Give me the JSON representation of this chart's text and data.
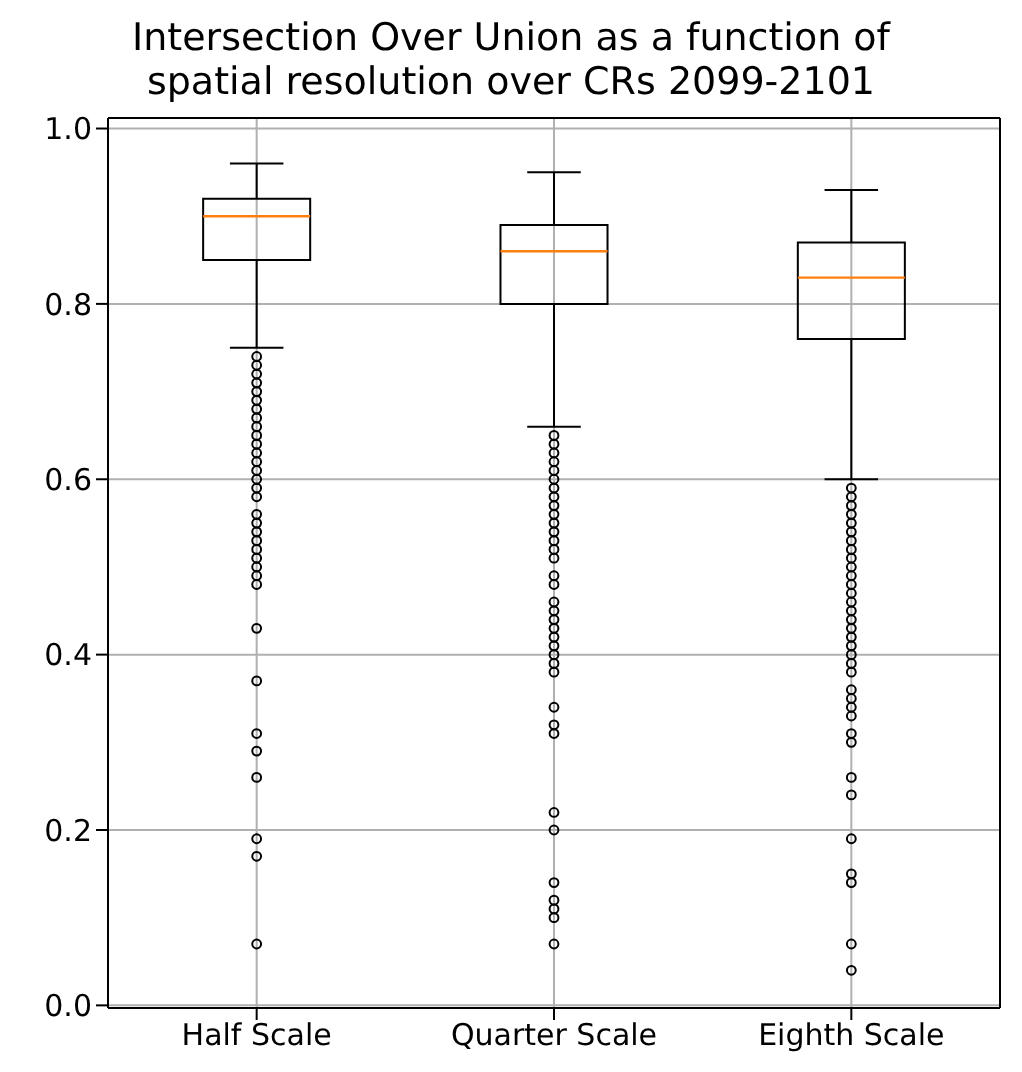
{
  "chart_data": {
    "type": "box",
    "title": "Intersection Over Union as a function of\nspatial resolution over CRs 2099-2101",
    "categories": [
      "Half Scale",
      "Quarter Scale",
      "Eighth Scale"
    ],
    "boxes": [
      {
        "low": 0.75,
        "q1": 0.85,
        "median": 0.9,
        "q3": 0.92,
        "high": 0.96,
        "outliers": [
          0.74,
          0.73,
          0.72,
          0.71,
          0.7,
          0.69,
          0.68,
          0.67,
          0.66,
          0.65,
          0.64,
          0.63,
          0.62,
          0.61,
          0.6,
          0.59,
          0.58,
          0.56,
          0.55,
          0.54,
          0.53,
          0.52,
          0.51,
          0.5,
          0.49,
          0.48,
          0.43,
          0.37,
          0.31,
          0.29,
          0.26,
          0.19,
          0.17,
          0.07
        ]
      },
      {
        "low": 0.66,
        "q1": 0.8,
        "median": 0.86,
        "q3": 0.89,
        "high": 0.95,
        "outliers": [
          0.65,
          0.64,
          0.63,
          0.62,
          0.61,
          0.6,
          0.59,
          0.58,
          0.57,
          0.56,
          0.55,
          0.54,
          0.53,
          0.52,
          0.51,
          0.49,
          0.48,
          0.46,
          0.45,
          0.44,
          0.43,
          0.42,
          0.41,
          0.4,
          0.39,
          0.38,
          0.34,
          0.32,
          0.31,
          0.22,
          0.2,
          0.14,
          0.12,
          0.11,
          0.1,
          0.07
        ]
      },
      {
        "low": 0.6,
        "q1": 0.76,
        "median": 0.83,
        "q3": 0.87,
        "high": 0.93,
        "outliers": [
          0.59,
          0.58,
          0.57,
          0.56,
          0.55,
          0.54,
          0.53,
          0.52,
          0.51,
          0.5,
          0.49,
          0.48,
          0.47,
          0.46,
          0.45,
          0.44,
          0.43,
          0.42,
          0.41,
          0.4,
          0.39,
          0.38,
          0.36,
          0.35,
          0.34,
          0.33,
          0.31,
          0.3,
          0.26,
          0.24,
          0.19,
          0.15,
          0.14,
          0.07,
          0.04
        ]
      }
    ],
    "ylim": [
      -0.003,
      1.012
    ],
    "yticks": [
      {
        "value": 0,
        "label": "0.0"
      },
      {
        "value": 0.2,
        "label": "0.2"
      },
      {
        "value": 0.4,
        "label": "0.4"
      },
      {
        "value": 0.6,
        "label": "0.6"
      },
      {
        "value": 0.8,
        "label": "0.8"
      },
      {
        "value": 1,
        "label": "1.0"
      }
    ],
    "grid": true,
    "marker": "circle"
  }
}
